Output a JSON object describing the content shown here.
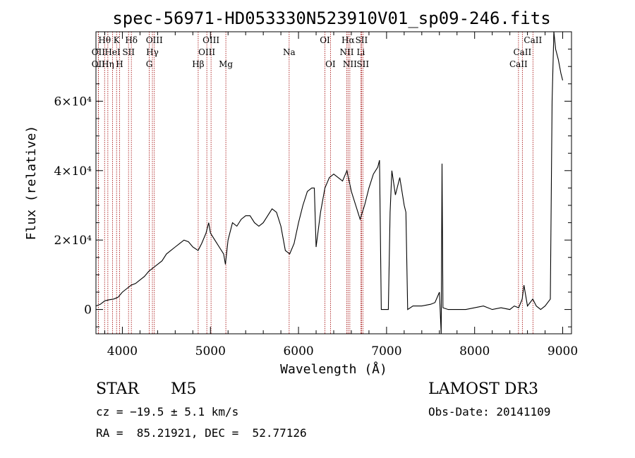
{
  "chart_data": {
    "type": "line",
    "title": "spec-56971-HD053330N523910V01_sp09-246.fits",
    "xlabel": "Wavelength (Å)",
    "ylabel": "Flux (relative)",
    "xlim": [
      3700,
      9100
    ],
    "ylim": [
      -7000,
      80000
    ],
    "x_ticks": [
      4000,
      5000,
      6000,
      7000,
      8000,
      9000
    ],
    "y_ticks": [
      {
        "value": 0,
        "label": "0"
      },
      {
        "value": 20000,
        "label": "2×10⁴"
      },
      {
        "value": 40000,
        "label": "4×10⁴"
      },
      {
        "value": 60000,
        "label": "6×10⁴"
      }
    ],
    "series": [
      {
        "color": "#000000",
        "x": [
          3700,
          3750,
          3800,
          3850,
          3900,
          3950,
          4000,
          4050,
          4100,
          4150,
          4200,
          4250,
          4300,
          4350,
          4400,
          4450,
          4500,
          4550,
          4600,
          4650,
          4700,
          4750,
          4800,
          4860,
          4900,
          4950,
          4980,
          5000,
          5050,
          5100,
          5150,
          5170,
          5200,
          5250,
          5300,
          5350,
          5400,
          5450,
          5500,
          5550,
          5600,
          5650,
          5700,
          5750,
          5800,
          5850,
          5900,
          5950,
          6000,
          6050,
          6100,
          6150,
          6180,
          6200,
          6250,
          6300,
          6350,
          6400,
          6450,
          6500,
          6550,
          6600,
          6650,
          6700,
          6750,
          6800,
          6850,
          6900,
          6920,
          6940,
          7000,
          7020,
          7040,
          7060,
          7100,
          7150,
          7200,
          7220,
          7240,
          7300,
          7400,
          7500,
          7550,
          7600,
          7620,
          7630,
          7640,
          7700,
          7800,
          7900,
          8000,
          8100,
          8200,
          8300,
          8400,
          8450,
          8500,
          8540,
          8560,
          8600,
          8660,
          8700,
          8750,
          8800,
          8860,
          8880,
          8900,
          8920,
          8950,
          8980,
          9000
        ],
        "y": [
          1000,
          1500,
          2500,
          2800,
          3000,
          3500,
          5000,
          6000,
          7000,
          7500,
          8500,
          9500,
          11000,
          12000,
          13000,
          14000,
          16000,
          17000,
          18000,
          19000,
          20000,
          19500,
          18000,
          17000,
          19000,
          22000,
          25000,
          22000,
          20000,
          18000,
          16000,
          13000,
          20000,
          25000,
          24000,
          26000,
          27000,
          27000,
          25000,
          24000,
          25000,
          27000,
          29000,
          28000,
          24000,
          17000,
          16000,
          19000,
          25000,
          30000,
          34000,
          35000,
          35000,
          18000,
          28000,
          35000,
          38000,
          39000,
          38000,
          37000,
          40000,
          34000,
          30000,
          26000,
          30000,
          35000,
          39000,
          41000,
          43000,
          0,
          0,
          0,
          28000,
          40000,
          33000,
          38000,
          30000,
          28000,
          0,
          1000,
          1000,
          1500,
          2000,
          5000,
          -8000,
          42000,
          500,
          0,
          0,
          0,
          500,
          1000,
          0,
          500,
          0,
          1000,
          500,
          3000,
          7000,
          1000,
          3000,
          1000,
          0,
          1000,
          3000,
          60000,
          80000,
          75000,
          72000,
          68000,
          66000
        ]
      }
    ],
    "spectral_lines": [
      {
        "label": "Hθ",
        "x": 3798,
        "row": 0
      },
      {
        "label": "OII",
        "x": 3727,
        "row": 1
      },
      {
        "label": "OII",
        "x": 3727,
        "row": 2
      },
      {
        "label": "K",
        "x": 3934,
        "row": 0
      },
      {
        "label": "HeI",
        "x": 3889,
        "row": 1
      },
      {
        "label": "Hη",
        "x": 3835,
        "row": 2
      },
      {
        "label": "Hδ",
        "x": 4102,
        "row": 0
      },
      {
        "label": "SII",
        "x": 4070,
        "row": 1
      },
      {
        "label": "H",
        "x": 3968,
        "row": 2
      },
      {
        "label": "OIII",
        "x": 4363,
        "row": 0
      },
      {
        "label": "Hγ",
        "x": 4341,
        "row": 1
      },
      {
        "label": "G",
        "x": 4305,
        "row": 2
      },
      {
        "label": "OIII",
        "x": 5007,
        "row": 0
      },
      {
        "label": "OIII",
        "x": 4959,
        "row": 1
      },
      {
        "label": "Hβ",
        "x": 4861,
        "row": 2
      },
      {
        "label": "Mg",
        "x": 5175,
        "row": 2
      },
      {
        "label": "Na",
        "x": 5894,
        "row": 1
      },
      {
        "label": "OI",
        "x": 6300,
        "row": 0
      },
      {
        "label": "OI",
        "x": 6363,
        "row": 2
      },
      {
        "label": "Hα",
        "x": 6563,
        "row": 0
      },
      {
        "label": "SII",
        "x": 6716,
        "row": 0
      },
      {
        "label": "NII",
        "x": 6548,
        "row": 1
      },
      {
        "label": "Li",
        "x": 6708,
        "row": 1
      },
      {
        "label": "NII",
        "x": 6583,
        "row": 2
      },
      {
        "label": "SII",
        "x": 6731,
        "row": 2
      },
      {
        "label": "CaII",
        "x": 8662,
        "row": 0
      },
      {
        "label": "CaII",
        "x": 8542,
        "row": 1
      },
      {
        "label": "CaII",
        "x": 8498,
        "row": 2
      }
    ],
    "line_color": "#a00000"
  },
  "info": {
    "object_class": "STAR",
    "subclass": "M5",
    "survey": "LAMOST DR3",
    "redshift": "cz = −19.5 ± 5.1 km/s",
    "obs_date": "Obs-Date: 20141109",
    "coords": "RA =  85.21921, DEC =  52.77126"
  }
}
